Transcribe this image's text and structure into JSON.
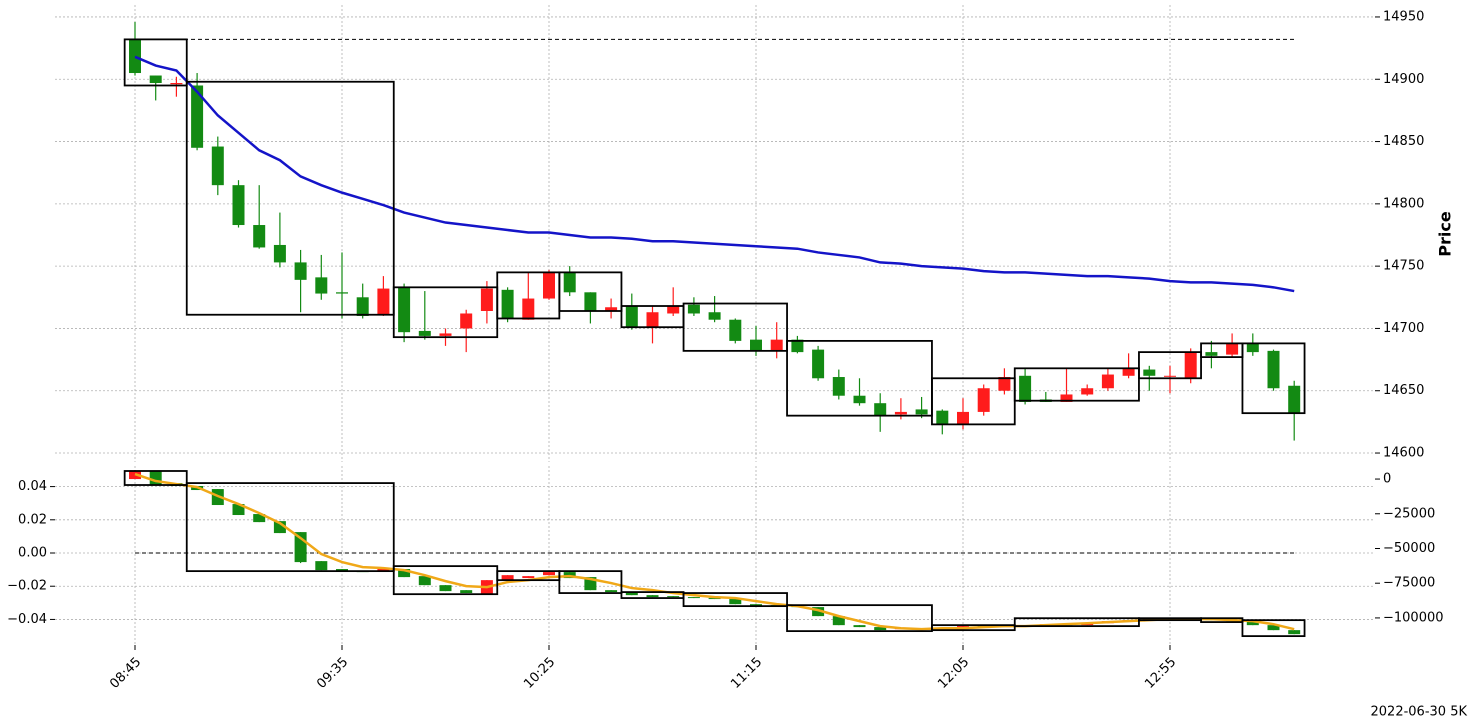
{
  "chart_data": [
    {
      "type": "candlestick",
      "ylabel": "Price",
      "ylim": [
        14592.8,
        14959.6
      ],
      "yticks": [
        14600,
        14650,
        14700,
        14750,
        14800,
        14850,
        14900,
        14950
      ],
      "grid": true,
      "up_color": "#ff1c1c",
      "down_color": "#138a13",
      "open": [
        14932,
        14903,
        14896,
        14895,
        14846,
        14815,
        14783,
        14767,
        14753,
        14741,
        14729,
        14725,
        14711,
        14733,
        14698,
        14694,
        14700,
        14714,
        14731,
        14707,
        14724,
        14745,
        14729,
        14714,
        14718,
        14701,
        14712,
        14719,
        14713,
        14707,
        14691,
        14682,
        14691,
        14683,
        14661,
        14646,
        14640,
        14631,
        14635,
        14634,
        14623,
        14633,
        14650,
        14662,
        14643,
        14641,
        14647,
        14652,
        14662,
        14667,
        14662,
        14660,
        14681,
        14679,
        14688,
        14682,
        14654
      ],
      "high": [
        14946,
        14903,
        14902,
        14905,
        14854,
        14819,
        14815,
        14793,
        14763,
        14759,
        14761,
        14736,
        14742,
        14736,
        14730,
        14700,
        14715,
        14738,
        14733,
        14745,
        14747,
        14750,
        14729,
        14724,
        14728,
        14718,
        14733,
        14725,
        14726,
        14708,
        14702,
        14705,
        14694,
        14686,
        14667,
        14660,
        14648,
        14644,
        14645,
        14635,
        14644,
        14655,
        14668,
        14668,
        14649,
        14668,
        14655,
        14668,
        14680,
        14670,
        14670,
        14684,
        14690,
        14696,
        14696,
        14683,
        14658
      ],
      "low": [
        14903,
        14883,
        14886,
        14843,
        14807,
        14781,
        14764,
        14749,
        14713,
        14723,
        14708,
        14708,
        14710,
        14689,
        14691,
        14686,
        14681,
        14704,
        14705,
        14707,
        14723,
        14726,
        14704,
        14708,
        14699,
        14688,
        14710,
        14710,
        14705,
        14688,
        14678,
        14676,
        14680,
        14658,
        14643,
        14638,
        14617,
        14627,
        14628,
        14615,
        14619,
        14630,
        14647,
        14639,
        14641,
        14641,
        14646,
        14650,
        14660,
        14650,
        14648,
        14656,
        14668,
        14677,
        14678,
        14650,
        14610
      ],
      "close": [
        14905,
        14897,
        14897,
        14845,
        14815,
        14783,
        14765,
        14753,
        14739,
        14728,
        14728,
        14710,
        14732,
        14697,
        14694,
        14696,
        14712,
        14732,
        14708,
        14724,
        14745,
        14729,
        14714,
        14717,
        14701,
        14713,
        14718,
        14712,
        14707,
        14690,
        14682,
        14691,
        14681,
        14660,
        14646,
        14640,
        14630,
        14633,
        14631,
        14623,
        14633,
        14652,
        14661,
        14641,
        14641,
        14647,
        14652,
        14663,
        14668,
        14662,
        14662,
        14681,
        14678,
        14688,
        14681,
        14652,
        14632
      ],
      "lines": [
        {
          "color": "#1414c8",
          "values": [
            14918,
            14911,
            14907,
            14890,
            14871,
            14857,
            14843,
            14835,
            14822,
            14815,
            14809,
            14804,
            14799,
            14793,
            14789,
            14785,
            14783,
            14781,
            14779,
            14777,
            14777,
            14775,
            14773,
            14773,
            14772,
            14770,
            14770,
            14769,
            14768,
            14767,
            14766,
            14765,
            14764,
            14761,
            14759,
            14757,
            14753,
            14752,
            14750,
            14749,
            14748,
            14746,
            14745,
            14745,
            14744,
            14743,
            14742,
            14742,
            14741,
            14740,
            14738,
            14737,
            14737,
            14736,
            14735,
            14733,
            14730
          ]
        }
      ],
      "boxes": [
        {
          "from": 0,
          "to": 2,
          "high": 14932,
          "low": 14895
        },
        {
          "from": 3,
          "to": 12,
          "high": 14898,
          "low": 14711
        },
        {
          "from": 13,
          "to": 17,
          "high": 14733,
          "low": 14693
        },
        {
          "from": 18,
          "to": 20,
          "high": 14745,
          "low": 14708
        },
        {
          "from": 21,
          "to": 23,
          "high": 14745,
          "low": 14714
        },
        {
          "from": 24,
          "to": 26,
          "high": 14718,
          "low": 14701
        },
        {
          "from": 27,
          "to": 31,
          "high": 14720,
          "low": 14682
        },
        {
          "from": 32,
          "to": 38,
          "high": 14690,
          "low": 14630
        },
        {
          "from": 39,
          "to": 42,
          "high": 14660,
          "low": 14623
        },
        {
          "from": 43,
          "to": 48,
          "high": 14668,
          "low": 14642
        },
        {
          "from": 49,
          "to": 51,
          "high": 14681,
          "low": 14660
        },
        {
          "from": 52,
          "to": 53,
          "high": 14688,
          "low": 14677
        },
        {
          "from": 54,
          "to": 56,
          "high": 14688,
          "low": 14632
        }
      ],
      "reference_line": 14932
    },
    {
      "type": "candlestick",
      "ylim": [
        -119500,
        9400
      ],
      "yticks": [
        0,
        {
          "value": -25000,
          "label": "−25000"
        },
        {
          "value": -50000,
          "label": "−50000"
        },
        {
          "value": -75000,
          "label": "−75000"
        },
        {
          "value": -100000,
          "label": "−100000"
        }
      ],
      "y2lim": [
        -0.0554,
        0.0524
      ],
      "y2ticks": [
        {
          "value": 0.04,
          "label": "0.04"
        },
        {
          "value": 0.02,
          "label": "0.02"
        },
        {
          "value": 0,
          "label": "0.00"
        },
        {
          "value": -0.02,
          "label": "−0.02"
        },
        {
          "value": -0.04,
          "label": "−0.04"
        }
      ],
      "grid": true,
      "up_color": "#ff1c1c",
      "down_color": "#138a13",
      "categories": [
        "08:45",
        null,
        null,
        null,
        null,
        null,
        null,
        null,
        null,
        null,
        "09:35",
        null,
        null,
        null,
        null,
        null,
        null,
        null,
        null,
        null,
        "10:25",
        null,
        null,
        null,
        null,
        null,
        null,
        null,
        null,
        null,
        "11:15",
        null,
        null,
        null,
        null,
        null,
        null,
        null,
        null,
        null,
        "12:05",
        null,
        null,
        null,
        null,
        null,
        null,
        null,
        null,
        null,
        "12:55",
        null,
        null,
        null,
        null,
        null,
        null
      ],
      "open": [
        0,
        5800,
        -2900,
        -5000,
        -7200,
        -18000,
        -25200,
        -30300,
        -38200,
        -59100,
        -64800,
        -66300,
        -66300,
        -64800,
        -69900,
        -76400,
        -80000,
        -82900,
        -72800,
        -71300,
        -69200,
        -67000,
        -70600,
        -80000,
        -81400,
        -83600,
        -84300,
        -85000,
        -85700,
        -86400,
        -90100,
        -90800,
        -91500,
        -92200,
        -98700,
        -105200,
        -106600,
        -108100,
        -107400,
        -108100,
        -108000,
        -105900,
        -106600,
        -105200,
        -105900,
        -104500,
        -105200,
        -103800,
        -102300,
        -101600,
        -100900,
        -101600,
        -100900,
        -101600,
        -102300,
        -105200,
        -108800
      ],
      "high": [
        6500,
        6000,
        -2900,
        -5000,
        -7200,
        -18000,
        -25200,
        -30300,
        -38200,
        -59100,
        -64800,
        -66300,
        -64100,
        -64800,
        -69900,
        -76400,
        -80000,
        -72800,
        -69200,
        -69900,
        -67000,
        -67000,
        -70600,
        -80000,
        -81400,
        -83600,
        -84300,
        -85000,
        -85700,
        -86400,
        -90100,
        -90800,
        -91500,
        -92200,
        -98700,
        -105200,
        -106600,
        -107400,
        -107400,
        -108100,
        -105900,
        -105900,
        -105200,
        -105200,
        -104500,
        -104500,
        -103800,
        -102300,
        -101600,
        -100900,
        -100900,
        -100900,
        -100900,
        -101600,
        -102300,
        -105200,
        -108800
      ],
      "low": [
        0,
        -4300,
        -5000,
        -7900,
        -18700,
        -25900,
        -31000,
        -38900,
        -60500,
        -65600,
        -66300,
        -66800,
        -66300,
        -70600,
        -76400,
        -80700,
        -82100,
        -82900,
        -72800,
        -71300,
        -69200,
        -71300,
        -80000,
        -81400,
        -83600,
        -85000,
        -85000,
        -85700,
        -86400,
        -90100,
        -91500,
        -91500,
        -92200,
        -98700,
        -105200,
        -106600,
        -108800,
        -108100,
        -108100,
        -108800,
        -108000,
        -106600,
        -106600,
        -105900,
        -105900,
        -105200,
        -105200,
        -103800,
        -102300,
        -101600,
        -101600,
        -101600,
        -101600,
        -102300,
        -105200,
        -108800,
        -111700
      ],
      "close": [
        5800,
        -4300,
        -5000,
        -7900,
        -18700,
        -25900,
        -31000,
        -38900,
        -59800,
        -65600,
        -66300,
        -66800,
        -64100,
        -70600,
        -76400,
        -80700,
        -82100,
        -72800,
        -69200,
        -69900,
        -67000,
        -71300,
        -80000,
        -81400,
        -83600,
        -85000,
        -85000,
        -85700,
        -86400,
        -90100,
        -91500,
        -91500,
        -92200,
        -98700,
        -105200,
        -106600,
        -108800,
        -107400,
        -108100,
        -108800,
        -105900,
        -106600,
        -105200,
        -105900,
        -104500,
        -105200,
        -103800,
        -102300,
        -101600,
        -100900,
        -101600,
        -100900,
        -101600,
        -102300,
        -105200,
        -108800,
        -111700
      ],
      "lines": [
        {
          "color": "#f0a818",
          "values": [
            3600,
            -1400,
            -3600,
            -5800,
            -12200,
            -18000,
            -24500,
            -31700,
            -42500,
            -54000,
            -59800,
            -63400,
            -64100,
            -65600,
            -69200,
            -73500,
            -77100,
            -77800,
            -74200,
            -72800,
            -70600,
            -69900,
            -72000,
            -74900,
            -78500,
            -80000,
            -82100,
            -83600,
            -85000,
            -85700,
            -87900,
            -90100,
            -91500,
            -94400,
            -98700,
            -102300,
            -105900,
            -107400,
            -108100,
            -107400,
            -107400,
            -106600,
            -105900,
            -105900,
            -105200,
            -104500,
            -103800,
            -103000,
            -102300,
            -101600,
            -100900,
            -100900,
            -100900,
            -101600,
            -102300,
            -104500,
            -108100
          ]
        }
      ],
      "boxes": [
        {
          "from": 0,
          "to": 2,
          "high": 5800,
          "low": -4300
        },
        {
          "from": 3,
          "to": 12,
          "high": -2900,
          "low": -66300
        },
        {
          "from": 13,
          "to": 17,
          "high": -62700,
          "low": -82900
        },
        {
          "from": 18,
          "to": 20,
          "high": -66300,
          "low": -72800
        },
        {
          "from": 21,
          "to": 23,
          "high": -66300,
          "low": -82100
        },
        {
          "from": 24,
          "to": 26,
          "high": -81400,
          "low": -85700
        },
        {
          "from": 27,
          "to": 31,
          "high": -82100,
          "low": -91500
        },
        {
          "from": 32,
          "to": 38,
          "high": -90800,
          "low": -109500
        },
        {
          "from": 39,
          "to": 42,
          "high": -105200,
          "low": -108800
        },
        {
          "from": 43,
          "to": 48,
          "high": -100200,
          "low": -105900
        },
        {
          "from": 49,
          "to": 51,
          "high": -100200,
          "low": -101600
        },
        {
          "from": 52,
          "to": 53,
          "high": -100200,
          "low": -103000
        },
        {
          "from": 54,
          "to": 56,
          "high": -101600,
          "low": -113100
        }
      ],
      "y2_reference_line": 0
    }
  ],
  "footer": "2022-06-30 5K"
}
